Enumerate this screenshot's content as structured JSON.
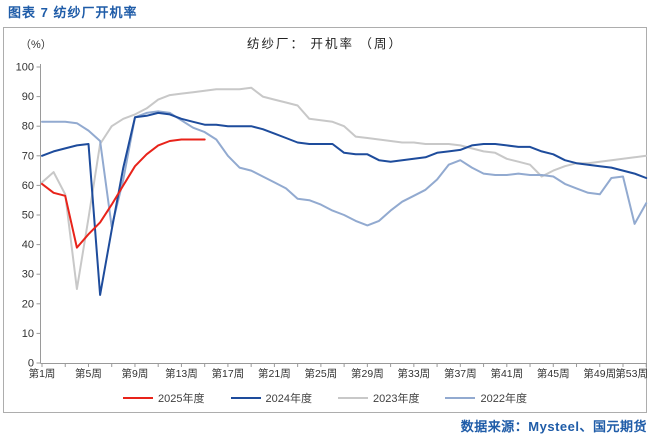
{
  "page_title": "图表 7  纺纱厂开机率",
  "source_note": "数据来源：Mysteel、国元期货",
  "chart_data": {
    "type": "line",
    "title": "纺纱厂： 开机率 （周）",
    "y_unit_label": "（%）",
    "ylim": [
      0,
      100
    ],
    "ytick_step": 10,
    "grid": false,
    "legend_position": "bottom",
    "x_unit": "week",
    "x_weeks_range": [
      1,
      53
    ],
    "xtick_weeks": [
      1,
      5,
      9,
      13,
      17,
      21,
      25,
      29,
      33,
      37,
      41,
      45,
      49,
      53
    ],
    "xtick_labels": [
      "第1周",
      "第5周",
      "第9周",
      "第13周",
      "第17周",
      "第21周",
      "第25周",
      "第29周",
      "第33周",
      "第37周",
      "第41周",
      "第45周",
      "第49周",
      "第53周"
    ],
    "series": [
      {
        "name": "2025年度",
        "color": "#e8231a",
        "start_week": 1,
        "values": [
          60.5,
          57.5,
          56.5,
          39,
          43.5,
          47.5,
          53.5,
          60,
          66.5,
          70.5,
          73.5,
          75,
          75.5,
          75.5,
          75.5
        ]
      },
      {
        "name": "2024年度",
        "color": "#1e4c9c",
        "start_week": 1,
        "values": [
          70,
          71.5,
          72.5,
          73.5,
          74,
          23,
          45,
          66,
          83,
          83.5,
          84.5,
          84,
          82.5,
          81.5,
          80.5,
          80.5,
          80,
          80,
          80,
          79,
          77.5,
          76,
          74.5,
          74,
          74,
          74,
          71,
          70.5,
          70.5,
          68.5,
          68,
          68.5,
          69,
          69.5,
          71,
          71.5,
          72,
          73.5,
          74,
          74,
          73.5,
          73,
          73,
          71.5,
          70.5,
          68.5,
          67.5,
          67,
          66.5,
          66,
          65,
          64,
          62.5
        ]
      },
      {
        "name": "2023年度",
        "color": "#c8c8c8",
        "start_week": 1,
        "values": [
          61,
          64.5,
          57,
          25,
          49,
          74,
          80,
          82.5,
          84,
          86,
          89,
          90.5,
          91,
          91.5,
          92,
          92.5,
          92.5,
          92.5,
          93,
          90,
          89,
          88,
          87,
          82.5,
          82,
          81.5,
          80,
          76.5,
          76,
          75.5,
          75,
          74.5,
          74.5,
          74,
          74,
          74,
          73.5,
          72.5,
          71.5,
          71,
          69,
          68,
          67,
          63,
          65,
          66.5,
          67.5,
          67.5,
          68,
          68.5,
          69,
          69.5,
          70
        ]
      },
      {
        "name": "2022年度",
        "color": "#92aad0",
        "start_week": 1,
        "values": [
          81.5,
          81.5,
          81.5,
          81,
          78.5,
          75,
          46,
          62,
          83,
          84.5,
          85,
          84.5,
          82,
          79.5,
          78,
          75.5,
          70,
          66,
          65,
          63,
          61,
          59,
          55.5,
          55,
          53.5,
          51.5,
          50,
          48,
          46.5,
          48,
          51.5,
          54.5,
          56.5,
          58.5,
          62,
          67,
          68.5,
          66,
          64,
          63.5,
          63.5,
          64,
          63.5,
          63.5,
          63,
          60.5,
          59,
          57.5,
          57,
          62.5,
          63,
          47,
          54
        ]
      }
    ]
  }
}
